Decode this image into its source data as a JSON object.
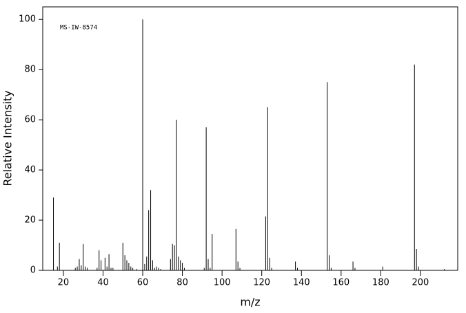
{
  "chart_data": {
    "type": "stem",
    "annotation": "MS-IW-8574",
    "xlabel": "m/z",
    "ylabel": "Relative Intensity",
    "color": "#000000",
    "x": [
      15,
      17,
      18,
      26,
      27,
      28,
      29,
      30,
      31,
      32,
      37,
      38,
      39,
      41,
      42,
      43,
      44,
      45,
      50,
      51,
      52,
      53,
      54,
      55,
      57,
      60,
      61,
      62,
      63,
      64,
      65,
      66,
      67,
      68,
      69,
      74,
      75,
      76,
      77,
      78,
      79,
      80,
      81,
      91,
      92,
      93,
      94,
      95,
      107,
      108,
      109,
      122,
      123,
      124,
      125,
      137,
      138,
      153,
      154,
      155,
      166,
      167,
      181,
      197,
      198,
      199,
      212
    ],
    "values": [
      29,
      1.5,
      11,
      1,
      1.5,
      4.5,
      2,
      10.5,
      1.5,
      1,
      1,
      8,
      4,
      5,
      1.5,
      6.5,
      1,
      1,
      11,
      6,
      4,
      3,
      1.5,
      1,
      0.5,
      100,
      2.5,
      5.5,
      24,
      32,
      4,
      1,
      1.5,
      1,
      0.5,
      4.5,
      10.5,
      10,
      60,
      5.5,
      4,
      3,
      1,
      1,
      57,
      4.5,
      1,
      14.5,
      16.5,
      3.5,
      1,
      21.5,
      65,
      5,
      1,
      3.5,
      1,
      75,
      6,
      1,
      3.5,
      1,
      1.5,
      82,
      8.5,
      1.5,
      0.5
    ],
    "xlim": [
      9.6,
      218.8
    ],
    "ylim": [
      0,
      105
    ],
    "xticks": [
      20,
      40,
      60,
      80,
      100,
      120,
      140,
      160,
      180,
      200
    ],
    "yticks": [
      0,
      20,
      40,
      60,
      80,
      100
    ]
  }
}
